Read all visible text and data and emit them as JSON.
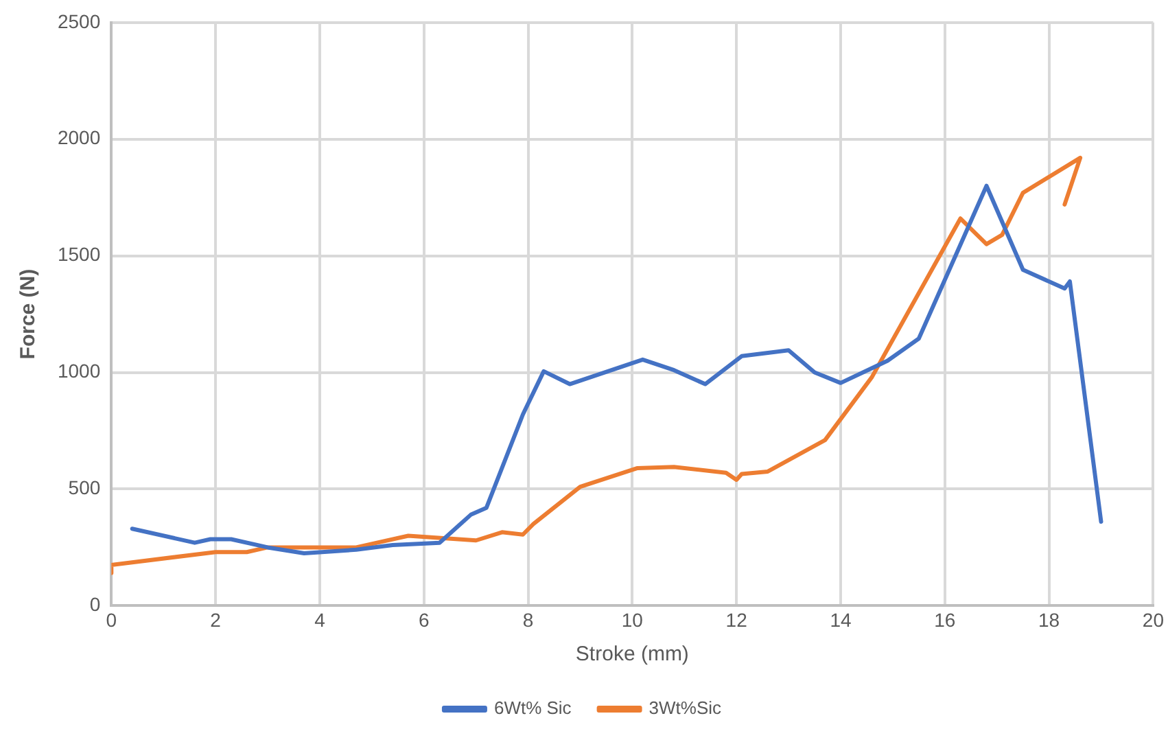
{
  "chart_data": {
    "type": "line",
    "xlabel": "Stroke (mm)",
    "ylabel": "Force (N)",
    "xlim": [
      0,
      20
    ],
    "xticks": [
      0,
      2,
      4,
      6,
      8,
      10,
      12,
      14,
      16,
      18,
      20
    ],
    "ylim": [
      0,
      2500
    ],
    "yticks": [
      0,
      500,
      1000,
      1500,
      2000,
      2500
    ],
    "grid": true,
    "legend": "bottom",
    "marker": "none",
    "line_style": "solid",
    "series": [
      {
        "name": "6Wt% Sic",
        "color": "#4472c4",
        "x": [
          0.4,
          1.6,
          1.9,
          2.3,
          3.0,
          3.7,
          4.7,
          5.4,
          6.3,
          6.9,
          7.2,
          7.9,
          8.3,
          8.8,
          10.2,
          10.8,
          11.4,
          12.1,
          13.0,
          13.5,
          14.0,
          14.9,
          15.5,
          16.8,
          17.5,
          18.3,
          18.4,
          19.0
        ],
        "values": [
          330,
          270,
          285,
          285,
          250,
          225,
          240,
          260,
          270,
          390,
          420,
          820,
          1005,
          950,
          1055,
          1010,
          950,
          1070,
          1095,
          1000,
          955,
          1050,
          1145,
          1800,
          1440,
          1360,
          1390,
          360
        ]
      },
      {
        "name": "3Wt%Sic",
        "color": "#ed7d31",
        "x": [
          0,
          0,
          2,
          2.6,
          3.0,
          4.7,
          5.7,
          7.0,
          7.5,
          7.9,
          8.1,
          9.0,
          10.1,
          10.8,
          11.8,
          12.0,
          12.1,
          12.6,
          13.7,
          14.6,
          16.3,
          16.8,
          17.1,
          17.5,
          18.6,
          18.3
        ],
        "values": [
          140,
          175,
          230,
          230,
          250,
          250,
          300,
          280,
          315,
          305,
          350,
          510,
          590,
          595,
          570,
          540,
          565,
          575,
          710,
          980,
          1660,
          1550,
          1590,
          1770,
          1920,
          1720
        ]
      }
    ]
  }
}
